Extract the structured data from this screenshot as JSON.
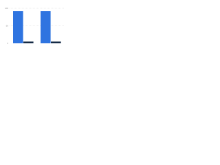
{
  "chart_data": {
    "type": "bar",
    "categories": [
      null,
      null
    ],
    "series": [
      {
        "color": "#2f74e0",
        "values": [
          92,
          92
        ]
      },
      {
        "color": "#152a45",
        "values": [
          5,
          5
        ]
      }
    ],
    "ylim": [
      0,
      100
    ],
    "yticks": [
      0,
      50,
      100
    ],
    "grid": true
  }
}
